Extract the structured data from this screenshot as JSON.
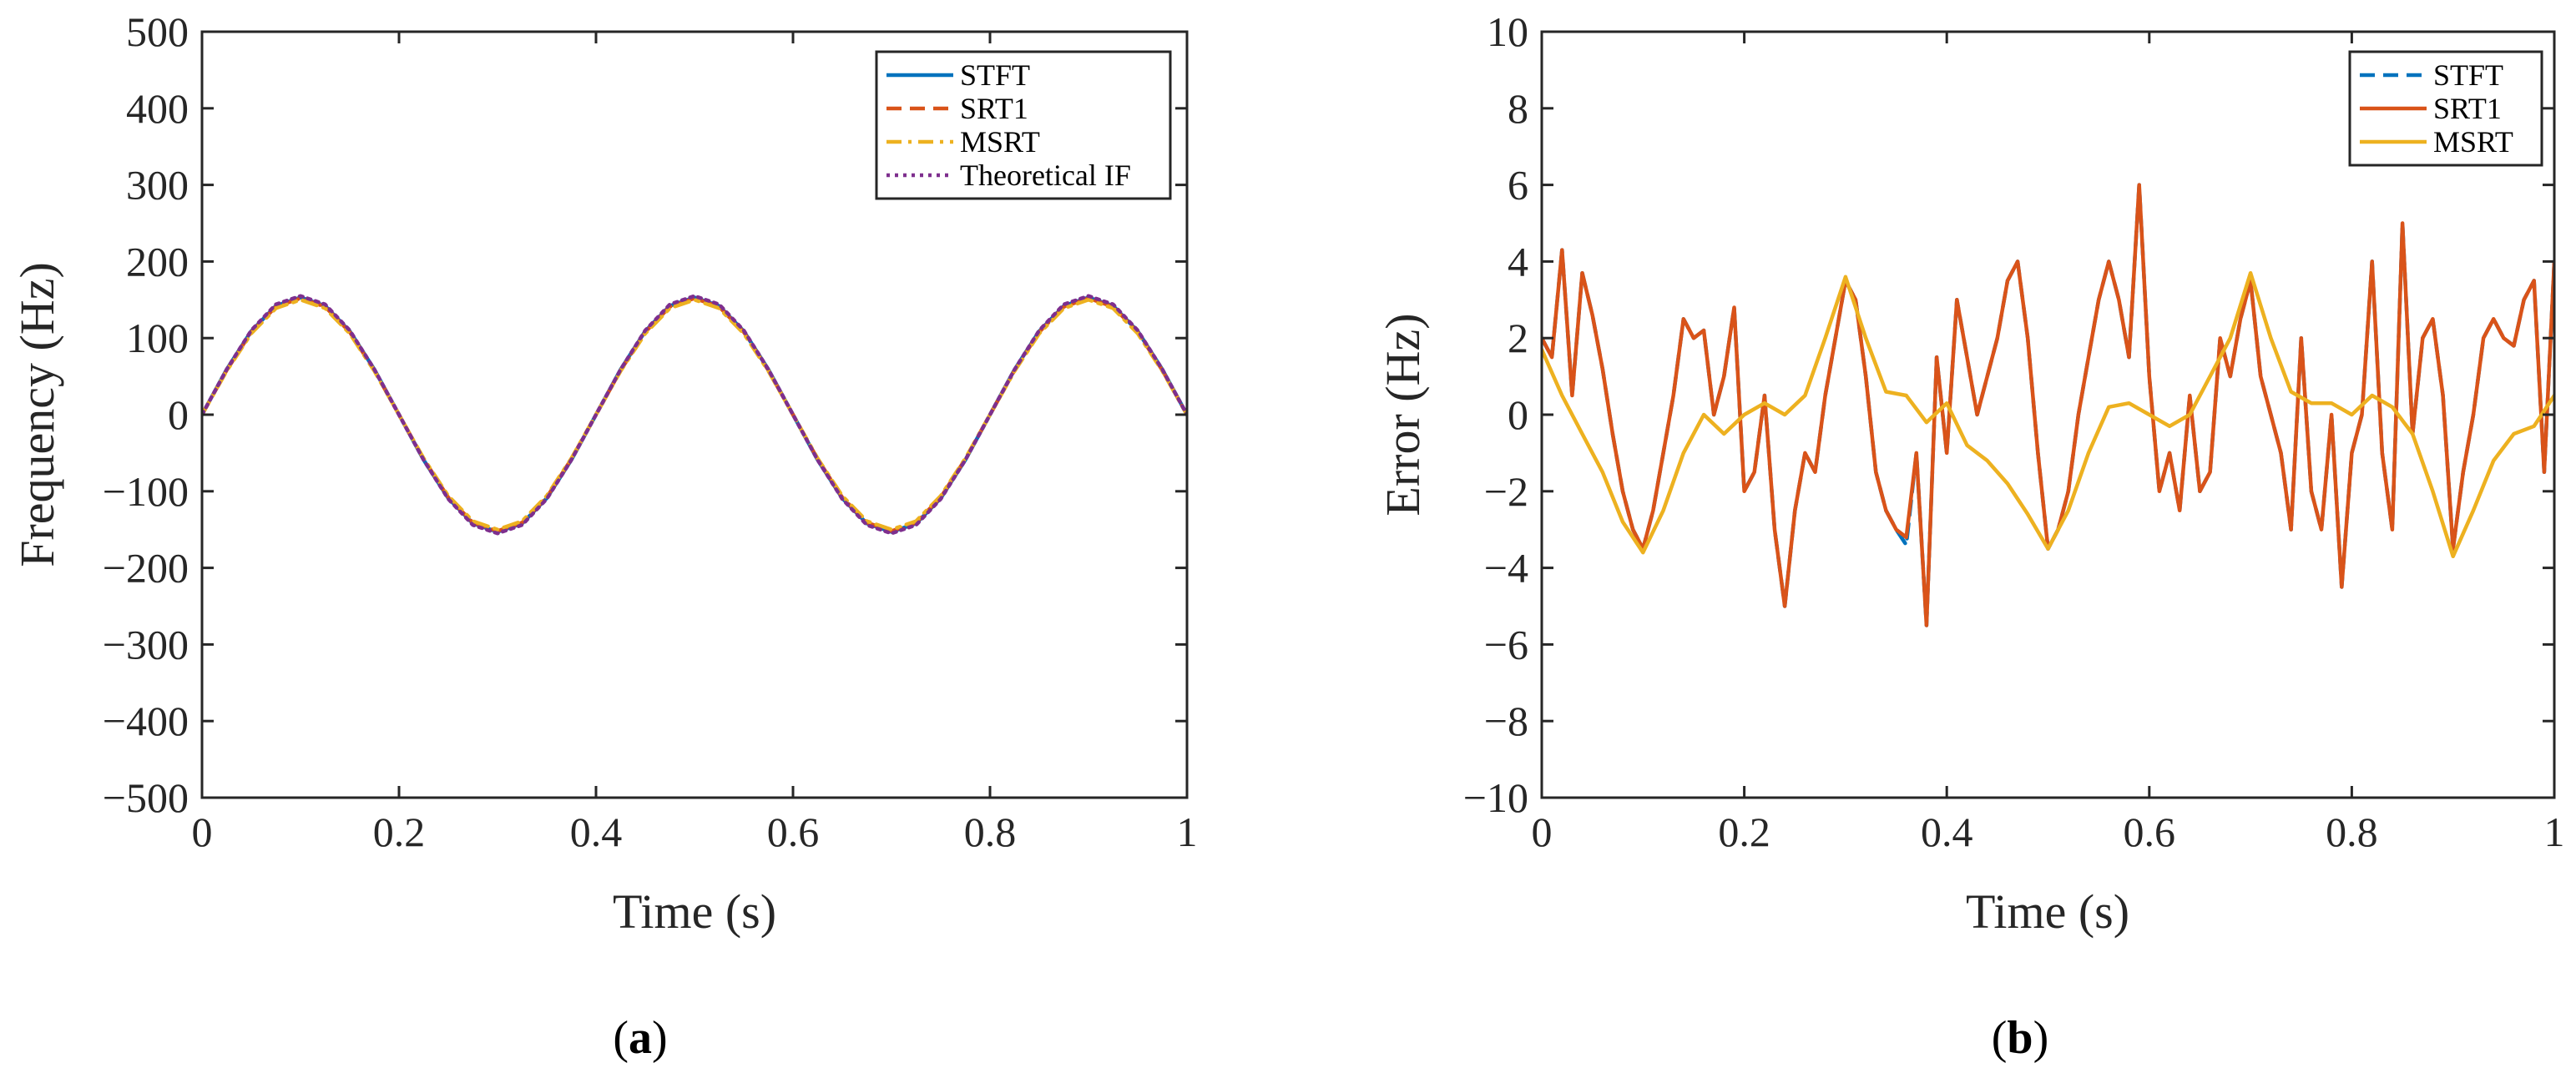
{
  "colors": {
    "stft": "#0072BD",
    "srt1": "#D95319",
    "msrt": "#EDB120",
    "theoretical": "#7E2F8E",
    "axis": "#262626"
  },
  "panels": [
    {
      "open": "(",
      "letter": "a",
      "close": ")"
    },
    {
      "open": "(",
      "letter": "b",
      "close": ")"
    }
  ],
  "chart_data": [
    {
      "type": "line",
      "xlabel": "Time (s)",
      "ylabel": "Frequency (Hz)",
      "xlim": [
        0,
        1
      ],
      "ylim": [
        -500,
        500
      ],
      "xticks": [
        0,
        0.2,
        0.4,
        0.6,
        0.8,
        1
      ],
      "xtick_labels": [
        "0",
        "0.2",
        "0.4",
        "0.6",
        "0.8",
        "1"
      ],
      "yticks": [
        -500,
        -400,
        -300,
        -200,
        -100,
        0,
        100,
        200,
        300,
        400,
        500
      ],
      "ytick_labels": [
        "−500",
        "−400",
        "−300",
        "−200",
        "−100",
        "0",
        "100",
        "200",
        "300",
        "400",
        "500"
      ],
      "legend_position": "top-right",
      "grid": false,
      "x": [
        0,
        0.025,
        0.05,
        0.075,
        0.1,
        0.125,
        0.15,
        0.175,
        0.2,
        0.225,
        0.25,
        0.275,
        0.3,
        0.325,
        0.35,
        0.375,
        0.4,
        0.425,
        0.45,
        0.475,
        0.5,
        0.525,
        0.55,
        0.575,
        0.6,
        0.625,
        0.65,
        0.675,
        0.7,
        0.725,
        0.75,
        0.775,
        0.8,
        0.825,
        0.85,
        0.875,
        0.9,
        0.925,
        0.95,
        0.975,
        1
      ],
      "series": [
        {
          "name": "STFT",
          "color": "#0072BD",
          "style": "solid",
          "values": [
            0,
            59,
            109,
            142,
            153,
            142,
            109,
            59,
            0,
            -59,
            -109,
            -142,
            -153,
            -142,
            -109,
            -59,
            0,
            59,
            109,
            142,
            153,
            142,
            109,
            59,
            0,
            -59,
            -109,
            -142,
            -153,
            -142,
            -109,
            -59,
            0,
            59,
            109,
            142,
            153,
            142,
            109,
            59,
            0
          ]
        },
        {
          "name": "SRT1",
          "color": "#D95319",
          "style": "dashed",
          "values": [
            0,
            58,
            108,
            141,
            152,
            141,
            108,
            58,
            0,
            -58,
            -108,
            -141,
            -152,
            -141,
            -108,
            -58,
            0,
            58,
            108,
            141,
            152,
            141,
            108,
            58,
            0,
            -58,
            -108,
            -141,
            -152,
            -141,
            -108,
            -58,
            0,
            58,
            108,
            141,
            152,
            141,
            108,
            58,
            0
          ]
        },
        {
          "name": "MSRT",
          "color": "#EDB120",
          "style": "dashdot",
          "values": [
            0,
            57,
            106,
            139,
            150,
            139,
            106,
            57,
            0,
            -57,
            -106,
            -139,
            -150,
            -139,
            -106,
            -57,
            0,
            57,
            106,
            139,
            150,
            139,
            106,
            57,
            0,
            -57,
            -106,
            -139,
            -150,
            -139,
            -106,
            -57,
            0,
            57,
            106,
            139,
            150,
            139,
            106,
            57,
            0
          ]
        },
        {
          "name": "Theoretical IF",
          "color": "#7E2F8E",
          "style": "dotted",
          "values": [
            0,
            59,
            110,
            144,
            155,
            144,
            110,
            59,
            0,
            -59,
            -110,
            -144,
            -155,
            -144,
            -110,
            -59,
            0,
            59,
            110,
            144,
            155,
            144,
            110,
            59,
            0,
            -59,
            -110,
            -144,
            -155,
            -144,
            -110,
            -59,
            0,
            59,
            110,
            144,
            155,
            144,
            110,
            59,
            0
          ]
        }
      ]
    },
    {
      "type": "line",
      "xlabel": "Time (s)",
      "ylabel": "Error (Hz)",
      "xlim": [
        0,
        1
      ],
      "ylim": [
        -10,
        10
      ],
      "xticks": [
        0,
        0.2,
        0.4,
        0.6,
        0.8,
        1
      ],
      "xtick_labels": [
        "0",
        "0.2",
        "0.4",
        "0.6",
        "0.8",
        "1"
      ],
      "yticks": [
        -10,
        -8,
        -6,
        -4,
        -2,
        0,
        2,
        4,
        6,
        8,
        10
      ],
      "ytick_labels": [
        "−10",
        "−8",
        "−6",
        "−4",
        "−2",
        "0",
        "2",
        "4",
        "6",
        "8",
        "10"
      ],
      "legend_position": "top-right",
      "grid": false,
      "series": [
        {
          "name": "STFT",
          "color": "#0072BD",
          "style": "dashed",
          "x": [
            0,
            0.01,
            0.02,
            0.03,
            0.04,
            0.05,
            0.06,
            0.07,
            0.08,
            0.09,
            0.1,
            0.11,
            0.12,
            0.13,
            0.14,
            0.15,
            0.16,
            0.17,
            0.18,
            0.19,
            0.2,
            0.21,
            0.22,
            0.23,
            0.24,
            0.25,
            0.26,
            0.27,
            0.28,
            0.29,
            0.3,
            0.31,
            0.32,
            0.33,
            0.34,
            0.35,
            0.36,
            0.37,
            0.38,
            0.39,
            0.4,
            0.41,
            0.42,
            0.43,
            0.44,
            0.45,
            0.46,
            0.47,
            0.48,
            0.49,
            0.5,
            0.51,
            0.52,
            0.53,
            0.54,
            0.55,
            0.56,
            0.57,
            0.58,
            0.59,
            0.6,
            0.61,
            0.62,
            0.63,
            0.64,
            0.65,
            0.66,
            0.67,
            0.68,
            0.69,
            0.7,
            0.71,
            0.72,
            0.73,
            0.74,
            0.75,
            0.76,
            0.77,
            0.78,
            0.79,
            0.8,
            0.81,
            0.82,
            0.83,
            0.84,
            0.85,
            0.86,
            0.87,
            0.88,
            0.89,
            0.9,
            0.91,
            0.92,
            0.93,
            0.94,
            0.95,
            0.96,
            0.97,
            0.98,
            0.99,
            1
          ],
          "values": [
            2,
            1.5,
            4.3,
            0.5,
            3.7,
            2.6,
            1.2,
            -0.5,
            -2,
            -3,
            -3.5,
            -2.5,
            -1,
            0.5,
            2.5,
            2,
            2.2,
            0,
            1,
            2.8,
            -2,
            -1.5,
            0.5,
            -3,
            -5,
            -2.5,
            -1,
            -1.5,
            0.5,
            2,
            3.5,
            3,
            1,
            -1.5,
            -2.5,
            -3,
            -3.4,
            -1,
            -5.5,
            1.5,
            -1,
            3,
            1.5,
            0,
            1,
            2,
            3.5,
            4,
            2,
            -1,
            -3.5,
            -3,
            -2,
            0,
            1.5,
            3,
            4,
            3,
            1.5,
            6,
            1,
            -2,
            -1,
            -2.5,
            0.5,
            -2,
            -1.5,
            2,
            1,
            2.5,
            3.5,
            1,
            0,
            -1,
            -3,
            2,
            -2,
            -3,
            0,
            -4.5,
            -1,
            0,
            4,
            -1,
            -3,
            5,
            -0.5,
            2,
            2.5,
            0.5,
            -3.5,
            -1.5,
            0,
            2,
            2.5,
            2,
            1.8,
            3,
            3.5,
            -1.5,
            4
          ]
        },
        {
          "name": "SRT1",
          "color": "#D95319",
          "style": "solid",
          "x": [
            0,
            0.01,
            0.02,
            0.03,
            0.04,
            0.05,
            0.06,
            0.07,
            0.08,
            0.09,
            0.1,
            0.11,
            0.12,
            0.13,
            0.14,
            0.15,
            0.16,
            0.17,
            0.18,
            0.19,
            0.2,
            0.21,
            0.22,
            0.23,
            0.24,
            0.25,
            0.26,
            0.27,
            0.28,
            0.29,
            0.3,
            0.31,
            0.32,
            0.33,
            0.34,
            0.35,
            0.36,
            0.37,
            0.38,
            0.39,
            0.4,
            0.41,
            0.42,
            0.43,
            0.44,
            0.45,
            0.46,
            0.47,
            0.48,
            0.49,
            0.5,
            0.51,
            0.52,
            0.53,
            0.54,
            0.55,
            0.56,
            0.57,
            0.58,
            0.59,
            0.6,
            0.61,
            0.62,
            0.63,
            0.64,
            0.65,
            0.66,
            0.67,
            0.68,
            0.69,
            0.7,
            0.71,
            0.72,
            0.73,
            0.74,
            0.75,
            0.76,
            0.77,
            0.78,
            0.79,
            0.8,
            0.81,
            0.82,
            0.83,
            0.84,
            0.85,
            0.86,
            0.87,
            0.88,
            0.89,
            0.9,
            0.91,
            0.92,
            0.93,
            0.94,
            0.95,
            0.96,
            0.97,
            0.98,
            0.99,
            1
          ],
          "values": [
            2,
            1.5,
            4.3,
            0.5,
            3.7,
            2.6,
            1.2,
            -0.5,
            -2,
            -3,
            -3.5,
            -2.5,
            -1,
            0.5,
            2.5,
            2,
            2.2,
            0,
            1,
            2.8,
            -2,
            -1.5,
            0.5,
            -3,
            -5,
            -2.5,
            -1,
            -1.5,
            0.5,
            2,
            3.5,
            3,
            1,
            -1.5,
            -2.5,
            -3,
            -3.2,
            -1,
            -5.5,
            1.5,
            -1,
            3,
            1.5,
            0,
            1,
            2,
            3.5,
            4,
            2,
            -1,
            -3.5,
            -3,
            -2,
            0,
            1.5,
            3,
            4,
            3,
            1.5,
            6,
            1,
            -2,
            -1,
            -2.5,
            0.5,
            -2,
            -1.5,
            2,
            1,
            2.5,
            3.5,
            1,
            0,
            -1,
            -3,
            2,
            -2,
            -3,
            0,
            -4.5,
            -1,
            0,
            4,
            -1,
            -3,
            5,
            -0.5,
            2,
            2.5,
            0.5,
            -3.5,
            -1.5,
            0,
            2,
            2.5,
            2,
            1.8,
            3,
            3.5,
            -1.5,
            4
          ]
        },
        {
          "name": "MSRT",
          "color": "#EDB120",
          "style": "solid",
          "x": [
            0,
            0.02,
            0.04,
            0.06,
            0.08,
            0.1,
            0.12,
            0.14,
            0.16,
            0.18,
            0.2,
            0.22,
            0.24,
            0.26,
            0.28,
            0.3,
            0.32,
            0.34,
            0.36,
            0.38,
            0.4,
            0.42,
            0.44,
            0.46,
            0.48,
            0.5,
            0.52,
            0.54,
            0.56,
            0.58,
            0.6,
            0.62,
            0.64,
            0.66,
            0.68,
            0.7,
            0.72,
            0.74,
            0.76,
            0.78,
            0.8,
            0.82,
            0.84,
            0.86,
            0.88,
            0.9,
            0.92,
            0.94,
            0.96,
            0.98,
            1
          ],
          "values": [
            1.7,
            0.5,
            -0.5,
            -1.5,
            -2.8,
            -3.6,
            -2.5,
            -1,
            0,
            -0.5,
            0,
            0.3,
            0,
            0.5,
            2,
            3.6,
            2,
            0.6,
            0.5,
            -0.2,
            0.3,
            -0.8,
            -1.2,
            -1.8,
            -2.6,
            -3.5,
            -2.5,
            -1,
            0.2,
            0.3,
            0,
            -0.3,
            0,
            1,
            2,
            3.7,
            2,
            0.6,
            0.3,
            0.3,
            0,
            0.5,
            0.2,
            -0.5,
            -2,
            -3.7,
            -2.5,
            -1.2,
            -0.5,
            -0.3,
            0.5
          ]
        }
      ]
    }
  ]
}
